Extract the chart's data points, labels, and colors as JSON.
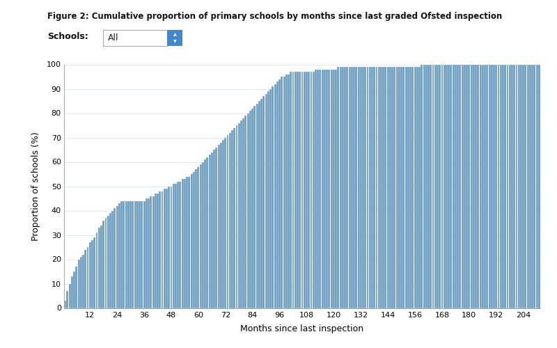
{
  "title": "Figure 2: Cumulative proportion of primary schools by months since last graded Ofsted inspection",
  "xlabel": "Months since last inspection",
  "ylabel": "Proportion of schools (%)",
  "bar_color": "#6b9dc2",
  "background_color": "#ffffff",
  "plot_bg_color": "#ffffff",
  "grid_color": "#dde8f0",
  "ylim": [
    0,
    100
  ],
  "yticks": [
    0,
    10,
    20,
    30,
    40,
    50,
    60,
    70,
    80,
    90,
    100
  ],
  "xticks": [
    12,
    24,
    36,
    48,
    60,
    72,
    84,
    96,
    108,
    120,
    132,
    144,
    156,
    168,
    180,
    192,
    204
  ],
  "schools_label": "Schools:",
  "schools_value": "All",
  "values": [
    3,
    7,
    10,
    13,
    15,
    17,
    20,
    21,
    22,
    24,
    25,
    27,
    28,
    29,
    31,
    33,
    34,
    36,
    37,
    38,
    39,
    40,
    41,
    42,
    43,
    44,
    44,
    44,
    44,
    44,
    44,
    44,
    44,
    44,
    44,
    44,
    45,
    45,
    46,
    46,
    47,
    47,
    48,
    48,
    49,
    49,
    50,
    50,
    51,
    51,
    52,
    52,
    53,
    53,
    54,
    54,
    55,
    56,
    57,
    58,
    59,
    60,
    61,
    62,
    63,
    64,
    65,
    66,
    67,
    68,
    69,
    70,
    71,
    72,
    73,
    74,
    75,
    76,
    77,
    78,
    79,
    80,
    81,
    82,
    83,
    84,
    85,
    86,
    87,
    88,
    89,
    90,
    91,
    92,
    93,
    94,
    95,
    95,
    96,
    96,
    97,
    97,
    97,
    97,
    97,
    97,
    97,
    97,
    97,
    97,
    97,
    98,
    98,
    98,
    98,
    98,
    98,
    98,
    98,
    98,
    98,
    99,
    99,
    99,
    99,
    99,
    99,
    99,
    99,
    99,
    99,
    99,
    99,
    99,
    99,
    99,
    99,
    99,
    99,
    99,
    99,
    99,
    99,
    99,
    99,
    99,
    99,
    99,
    99,
    99,
    99,
    99,
    99,
    99,
    99,
    99,
    99,
    99,
    100,
    100,
    100,
    100,
    100,
    100,
    100,
    100,
    100,
    100,
    100,
    100,
    100,
    100,
    100,
    100,
    100,
    100,
    100,
    100,
    100,
    100,
    100,
    100,
    100,
    100,
    100,
    100,
    100,
    100,
    100,
    100,
    100,
    100,
    100,
    100,
    100,
    100,
    100,
    100,
    100,
    100,
    100,
    100,
    100,
    100,
    100,
    100,
    100,
    100,
    100,
    100,
    100
  ]
}
